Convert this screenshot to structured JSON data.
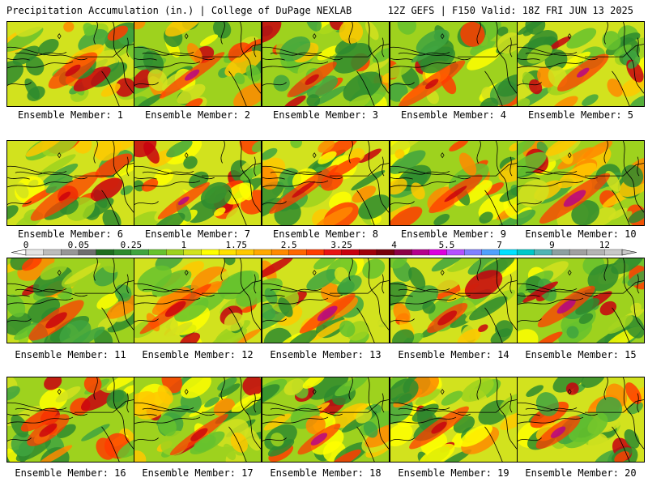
{
  "header": {
    "left": "Precipitation Accumulation (in.) | College of DuPage NEXLAB",
    "right": "12Z GEFS | F150 Valid: 18Z FRI JUN 13 2025"
  },
  "label_prefix": "Ensemble Member: ",
  "members": [
    1,
    2,
    3,
    4,
    5,
    6,
    7,
    8,
    9,
    10,
    11,
    12,
    13,
    14,
    15,
    16,
    17,
    18,
    19,
    20
  ],
  "colorbar": {
    "tick_labels": [
      "0",
      "0.05",
      "0.25",
      "1",
      "1.75",
      "2.5",
      "3.25",
      "4",
      "5.5",
      "7",
      "9",
      "12"
    ],
    "colors": [
      "#e4e4e4",
      "#bcbcbc",
      "#969696",
      "#6e6e6e",
      "#1e6e1e",
      "#2e8b2e",
      "#3fa43f",
      "#66c22e",
      "#9ed21e",
      "#d2e21e",
      "#ffff00",
      "#ffe000",
      "#ffc800",
      "#ffa800",
      "#ff8a00",
      "#ff6600",
      "#ff3c00",
      "#e81414",
      "#c8000f",
      "#a0000a",
      "#78000a",
      "#8c0046",
      "#b4008c",
      "#dc00dc",
      "#b450ff",
      "#8080ff",
      "#50a0ff",
      "#00e0ff",
      "#00c8c8",
      "#50b4b4",
      "#8ca0a0",
      "#a0a0a0",
      "#b4b4b4",
      "#c8c8c8"
    ]
  }
}
